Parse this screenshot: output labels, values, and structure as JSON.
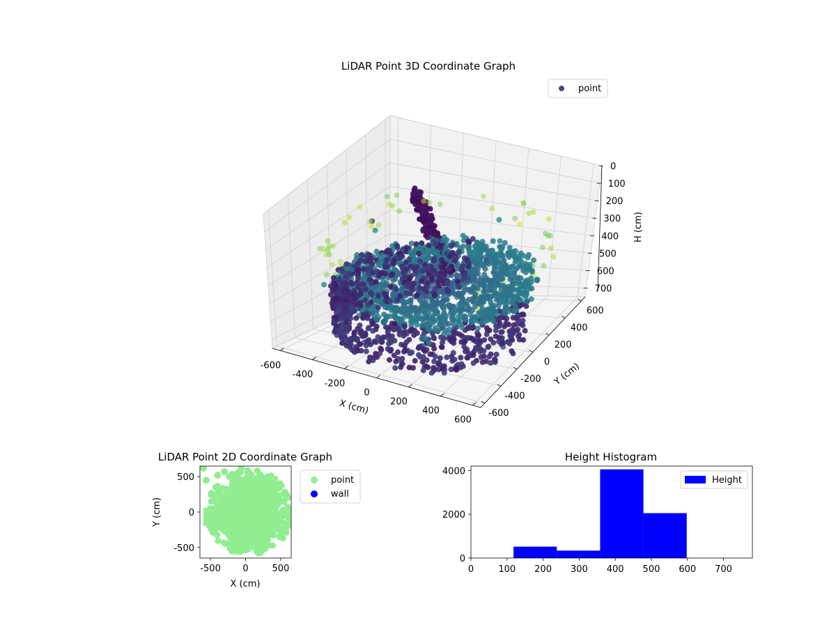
{
  "chart_data": [
    {
      "type": "scatter",
      "title": "LiDAR Point 3D Coordinate Graph",
      "xlabel": "X (cm)",
      "ylabel": "Y (cm)",
      "zlabel": "H (cm)",
      "xlim": [
        -650,
        650
      ],
      "ylim": [
        -650,
        650
      ],
      "zlim": [
        750,
        0
      ],
      "xticks": [
        -600,
        -400,
        -200,
        0,
        200,
        400,
        600
      ],
      "yticks": [
        -600,
        -400,
        -200,
        0,
        200,
        400,
        600
      ],
      "zticks": [
        0,
        100,
        200,
        300,
        400,
        500,
        600,
        700
      ],
      "legend": [
        "point"
      ],
      "legend_placement": "top-right",
      "colormap": "viridis",
      "grid": true,
      "series": [
        {
          "name": "point",
          "description_values": "dense circular room scan; floor near H 450-600, walls at radius ~600, ceiling ring near H 150-250"
        }
      ]
    },
    {
      "type": "scatter",
      "title": "LiDAR Point 2D Coordinate Graph",
      "xlabel": "X (cm)",
      "ylabel": "Y (cm)",
      "xlim": [
        -650,
        650
      ],
      "ylim": [
        -650,
        650
      ],
      "xticks": [
        -500,
        0,
        500
      ],
      "yticks": [
        -500,
        0,
        500
      ],
      "legend": [
        "point",
        "wall"
      ],
      "legend_placement": "outside-right",
      "colors": {
        "point": "#90ee90",
        "wall": "#0000ff"
      },
      "series": [
        {
          "name": "point",
          "shape": "filled disk of radius ~600 cm centered near (50, 0)"
        },
        {
          "name": "wall",
          "values": []
        }
      ]
    },
    {
      "type": "bar",
      "title": "Height Histogram",
      "xlim": [
        0,
        780
      ],
      "ylim": [
        0,
        4200
      ],
      "xticks": [
        0,
        100,
        200,
        300,
        400,
        500,
        600,
        700
      ],
      "yticks": [
        0,
        2000,
        4000
      ],
      "legend": [
        "Height"
      ],
      "legend_placement": "top-right",
      "color": "#0000ff",
      "bins": [
        {
          "x0": 0,
          "x1": 118,
          "count": 0
        },
        {
          "x0": 118,
          "x1": 238,
          "count": 520
        },
        {
          "x0": 238,
          "x1": 358,
          "count": 340
        },
        {
          "x0": 358,
          "x1": 478,
          "count": 4050
        },
        {
          "x0": 478,
          "x1": 598,
          "count": 2050
        },
        {
          "x0": 598,
          "x1": 718,
          "count": 0
        }
      ]
    }
  ]
}
